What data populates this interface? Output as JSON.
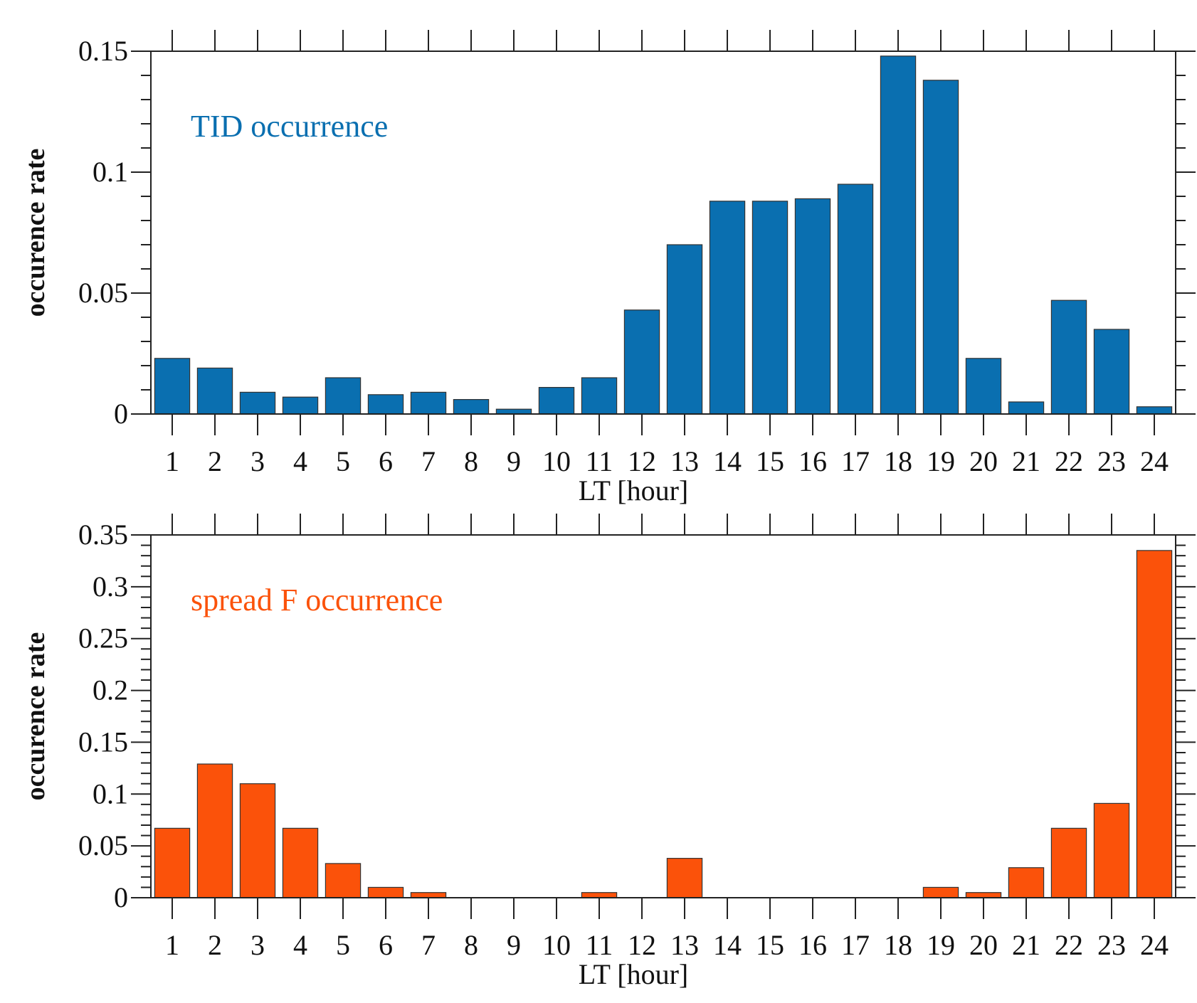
{
  "chart_data": [
    {
      "type": "bar",
      "title": "",
      "annotation": "TID occurrence",
      "color": "#0a6fb0",
      "xlabel": "LT [hour]",
      "ylabel": "occurence rate",
      "categories": [
        "1",
        "2",
        "3",
        "4",
        "5",
        "6",
        "7",
        "8",
        "9",
        "10",
        "11",
        "12",
        "13",
        "14",
        "15",
        "16",
        "17",
        "18",
        "19",
        "20",
        "21",
        "22",
        "23",
        "24"
      ],
      "values": [
        0.023,
        0.019,
        0.009,
        0.007,
        0.015,
        0.008,
        0.009,
        0.006,
        0.002,
        0.011,
        0.015,
        0.043,
        0.07,
        0.088,
        0.088,
        0.089,
        0.095,
        0.148,
        0.138,
        0.023,
        0.005,
        0.047,
        0.035,
        0.003
      ],
      "ylim": [
        0,
        0.15
      ],
      "yticks": [
        0,
        0.05,
        0.1,
        0.15
      ],
      "ytick_labels": [
        "0",
        "0.05",
        "0.1",
        "0.15"
      ],
      "yminor_step": 0.01
    },
    {
      "type": "bar",
      "title": "",
      "annotation": "spread F occurrence",
      "color": "#fb520a",
      "xlabel": "LT [hour]",
      "ylabel": "occurence rate",
      "categories": [
        "1",
        "2",
        "3",
        "4",
        "5",
        "6",
        "7",
        "8",
        "9",
        "10",
        "11",
        "12",
        "13",
        "14",
        "15",
        "16",
        "17",
        "18",
        "19",
        "20",
        "21",
        "22",
        "23",
        "24"
      ],
      "values": [
        0.067,
        0.129,
        0.11,
        0.067,
        0.033,
        0.01,
        0.005,
        0,
        0,
        0,
        0.005,
        0,
        0.038,
        0,
        0,
        0,
        0,
        0,
        0.01,
        0.005,
        0.029,
        0.067,
        0.091,
        0.335
      ],
      "ylim": [
        0,
        0.35
      ],
      "yticks": [
        0,
        0.05,
        0.1,
        0.15,
        0.2,
        0.25,
        0.3,
        0.35
      ],
      "ytick_labels": [
        "0",
        "0.05",
        "0.1",
        "0.15",
        "0.2",
        "0.25",
        "0.3",
        "0.35"
      ],
      "yminor_step": 0.01
    }
  ]
}
